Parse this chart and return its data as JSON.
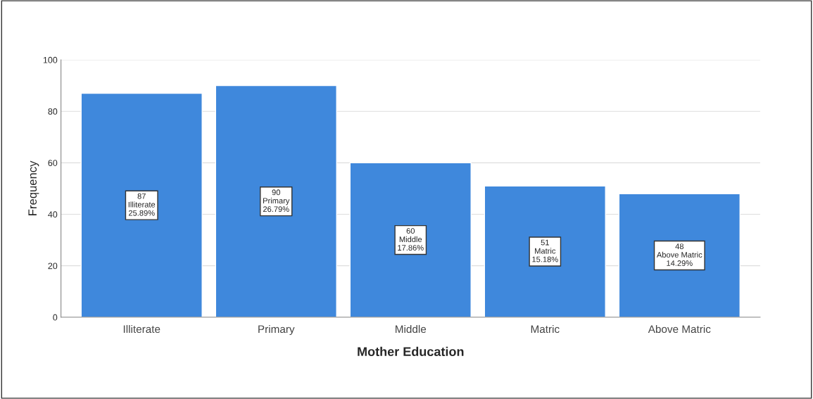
{
  "chart_data": {
    "type": "bar",
    "xlabel": "Mother Education",
    "ylabel": "Frequency",
    "categories": [
      "Illiterate",
      "Primary",
      "Middle",
      "Matric",
      "Above Matric"
    ],
    "values": [
      87,
      90,
      60,
      51,
      48
    ],
    "value_labels": [
      "87\nIlliterate\n25.89%",
      "90\nPrimary\n26.79%",
      "60\nMiddle\n17.86%",
      "51\nMatric\n15.18%",
      "48\nAbove Matric\n14.29%"
    ],
    "color": "#3f88dc",
    "ylim": [
      0,
      100
    ],
    "yticks": [
      0,
      20,
      40,
      60,
      80,
      100
    ],
    "grid": "y"
  }
}
